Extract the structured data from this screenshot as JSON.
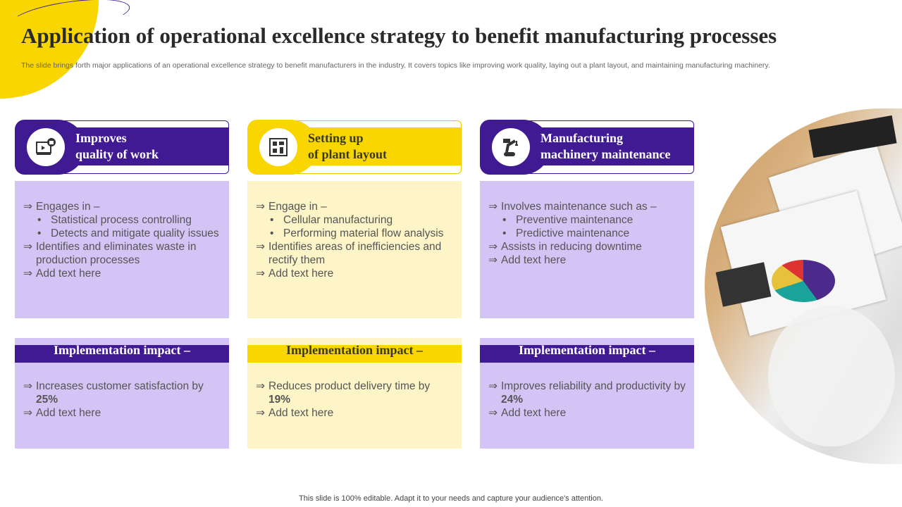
{
  "title": "Application of operational excellence strategy to benefit manufacturing processes",
  "subtitle": "The slide brings forth major applications of an operational excellence strategy to benefit manufacturers in the industry. It covers topics like improving work quality, laying out a plant layout, and maintaining manufacturing machinery.",
  "colors": {
    "purple": "#3f1a93",
    "yellow": "#f9d600",
    "light_purple": "#d3c4f5",
    "light_yellow": "#fdf5c8"
  },
  "columns": [
    {
      "icon": "video-thumbs-up-icon",
      "title1": "Improves",
      "title2": "quality of work",
      "lines": [
        {
          "t": "a",
          "text": "Engages in –"
        },
        {
          "t": "b",
          "text": "Statistical process controlling"
        },
        {
          "t": "b",
          "text": "Detects and mitigate quality issues"
        },
        {
          "t": "a",
          "text": "Identifies and eliminates waste in production processes"
        },
        {
          "t": "a",
          "text": "Add text here"
        }
      ],
      "impact_title": "Implementation impact –",
      "impact_text": "Increases customer satisfaction by",
      "impact_value": "25%",
      "impact_add": "Add text here"
    },
    {
      "icon": "plant-layout-icon",
      "title1": "Setting up",
      "title2": "of plant layout",
      "lines": [
        {
          "t": "a",
          "text": "Engage in –"
        },
        {
          "t": "b",
          "text": "Cellular manufacturing"
        },
        {
          "t": "b",
          "text": "Performing material flow analysis"
        },
        {
          "t": "a",
          "text": "Identifies areas of inefficiencies and rectify them"
        },
        {
          "t": "a",
          "text": "Add text here"
        }
      ],
      "impact_title": "Implementation impact –",
      "impact_text": "Reduces product delivery time by",
      "impact_value": "19%",
      "impact_add": "Add text here"
    },
    {
      "icon": "robot-arm-icon",
      "title1": "Manufacturing",
      "title2": "machinery maintenance",
      "lines": [
        {
          "t": "a",
          "text": "Involves  maintenance such as –"
        },
        {
          "t": "b",
          "text": "Preventive maintenance"
        },
        {
          "t": "b",
          "text": "Predictive maintenance"
        },
        {
          "t": "a",
          "text": "Assists in reducing downtime"
        },
        {
          "t": "a",
          "text": " Add text here"
        }
      ],
      "impact_title": "Implementation impact –",
      "impact_text": "Improves reliability and productivity by",
      "impact_value": "24%",
      "impact_add": "Add text here"
    }
  ],
  "footer": "This slide is 100% editable. Adapt it to your needs and capture your audience's attention."
}
